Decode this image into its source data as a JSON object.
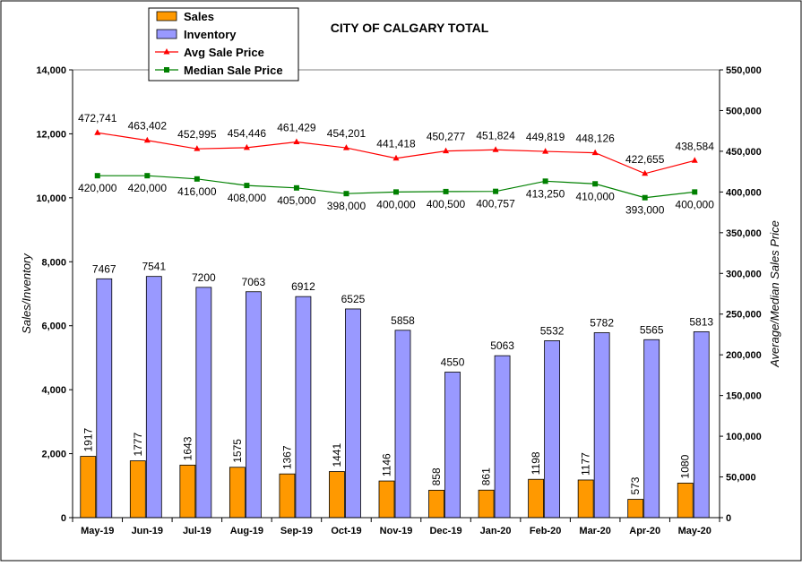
{
  "chart_data": {
    "type": "bar",
    "title": "CITY OF CALGARY TOTAL",
    "ylabel": "Sales/Inventory",
    "y2label": "Average/Median Sales Price",
    "categories": [
      "May-19",
      "Jun-19",
      "Jul-19",
      "Aug-19",
      "Sep-19",
      "Oct-19",
      "Nov-19",
      "Dec-19",
      "Jan-20",
      "Feb-20",
      "Mar-20",
      "Apr-20",
      "May-20"
    ],
    "ylim": [
      0,
      14000
    ],
    "y2lim": [
      0,
      550000
    ],
    "yticks": [
      "0",
      "2,000",
      "4,000",
      "6,000",
      "8,000",
      "10,000",
      "12,000",
      "14,000"
    ],
    "y2ticks": [
      "0",
      "50,000",
      "100,000",
      "150,000",
      "200,000",
      "250,000",
      "300,000",
      "350,000",
      "400,000",
      "450,000",
      "500,000",
      "550,000"
    ],
    "legend_position": "top-left",
    "series": [
      {
        "name": "Sales",
        "kind": "bar",
        "axis": "left",
        "color": "#FF9900",
        "values": [
          1917,
          1777,
          1643,
          1575,
          1367,
          1441,
          1146,
          858,
          861,
          1198,
          1177,
          573,
          1080
        ],
        "labels": [
          "1917",
          "1777",
          "1643",
          "1575",
          "1367",
          "1441",
          "1146",
          "858",
          "861",
          "1198",
          "1177",
          "573",
          "1080"
        ]
      },
      {
        "name": "Inventory",
        "kind": "bar",
        "axis": "left",
        "color": "#9999FF",
        "values": [
          7467,
          7541,
          7200,
          7063,
          6912,
          6525,
          5858,
          4550,
          5063,
          5532,
          5782,
          5565,
          5813
        ],
        "labels": [
          "7467",
          "7541",
          "7200",
          "7063",
          "6912",
          "6525",
          "5858",
          "4550",
          "5063",
          "5532",
          "5782",
          "5565",
          "5813"
        ]
      },
      {
        "name": "Avg Sale Price",
        "kind": "line",
        "axis": "right",
        "color": "#FF0000",
        "marker": "triangle",
        "values": [
          472741,
          463402,
          452995,
          454446,
          461429,
          454201,
          441418,
          450277,
          451824,
          449819,
          448126,
          422655,
          438584
        ],
        "labels": [
          "472,741",
          "463,402",
          "452,995",
          "454,446",
          "461,429",
          "454,201",
          "441,418",
          "450,277",
          "451,824",
          "449,819",
          "448,126",
          "422,655",
          "438,584"
        ]
      },
      {
        "name": "Median Sale Price",
        "kind": "line",
        "axis": "right",
        "color": "#008000",
        "marker": "square",
        "values": [
          420000,
          420000,
          416000,
          408000,
          405000,
          398000,
          400000,
          400500,
          400757,
          413250,
          410000,
          393000,
          400000
        ],
        "labels": [
          "420,000",
          "420,000",
          "416,000",
          "408,000",
          "405,000",
          "398,000",
          "400,000",
          "400,500",
          "400,757",
          "413,250",
          "410,000",
          "393,000",
          "400,000"
        ]
      }
    ]
  }
}
